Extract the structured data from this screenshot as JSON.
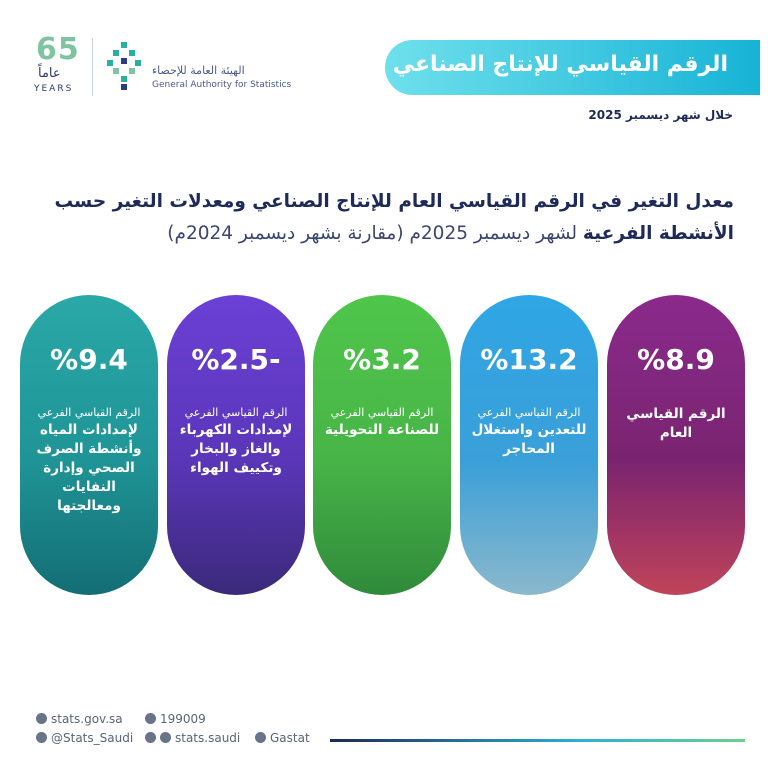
{
  "logo": {
    "anniversary": "65",
    "years_ar": "عاماً",
    "years_en": "YEARS",
    "name_ar": "الهيئة العامة للإحصاء",
    "name_en": "General Authority for Statistics"
  },
  "header": {
    "title": "الرقم القياسي للإنتاج الصناعي",
    "subtitle": "خلال شهر ديسمبر 2025"
  },
  "heading": {
    "bold": "معدل التغير في الرقم القياسي العام للإنتاج الصناعي ومعدلات التغير حسب الأنشطة الفرعية",
    "regular": "لشهر ديسمبر 2025م (مقارنة بشهر ديسمبر 2024م)"
  },
  "cards": [
    {
      "value": "%8.9",
      "label": "الرقم القياسي العام"
    },
    {
      "value": "%13.2",
      "kind": "الرقم القياسي الفرعي",
      "label": "للتعدين واستغلال المحاجر"
    },
    {
      "value": "%3.2",
      "kind": "الرقم القياسي الفرعي",
      "label": "للصناعة التحويلية"
    },
    {
      "value": "%2.5-",
      "kind": "الرقم القياسي الفرعي",
      "label": "لإمدادات الكهرباء والغاز والبخار وتكييف الهواء"
    },
    {
      "value": "%9.4",
      "kind": "الرقم القياسي الفرعي",
      "label": "لإمدادات المياه وأنشطة الصرف الصحي وإدارة النفايات ومعالجتها"
    }
  ],
  "footer": {
    "website": "stats.gov.sa",
    "phone": "199009",
    "x": "@Stats_Saudi",
    "social": "stats.saudi",
    "linkedin": "Gastat"
  }
}
